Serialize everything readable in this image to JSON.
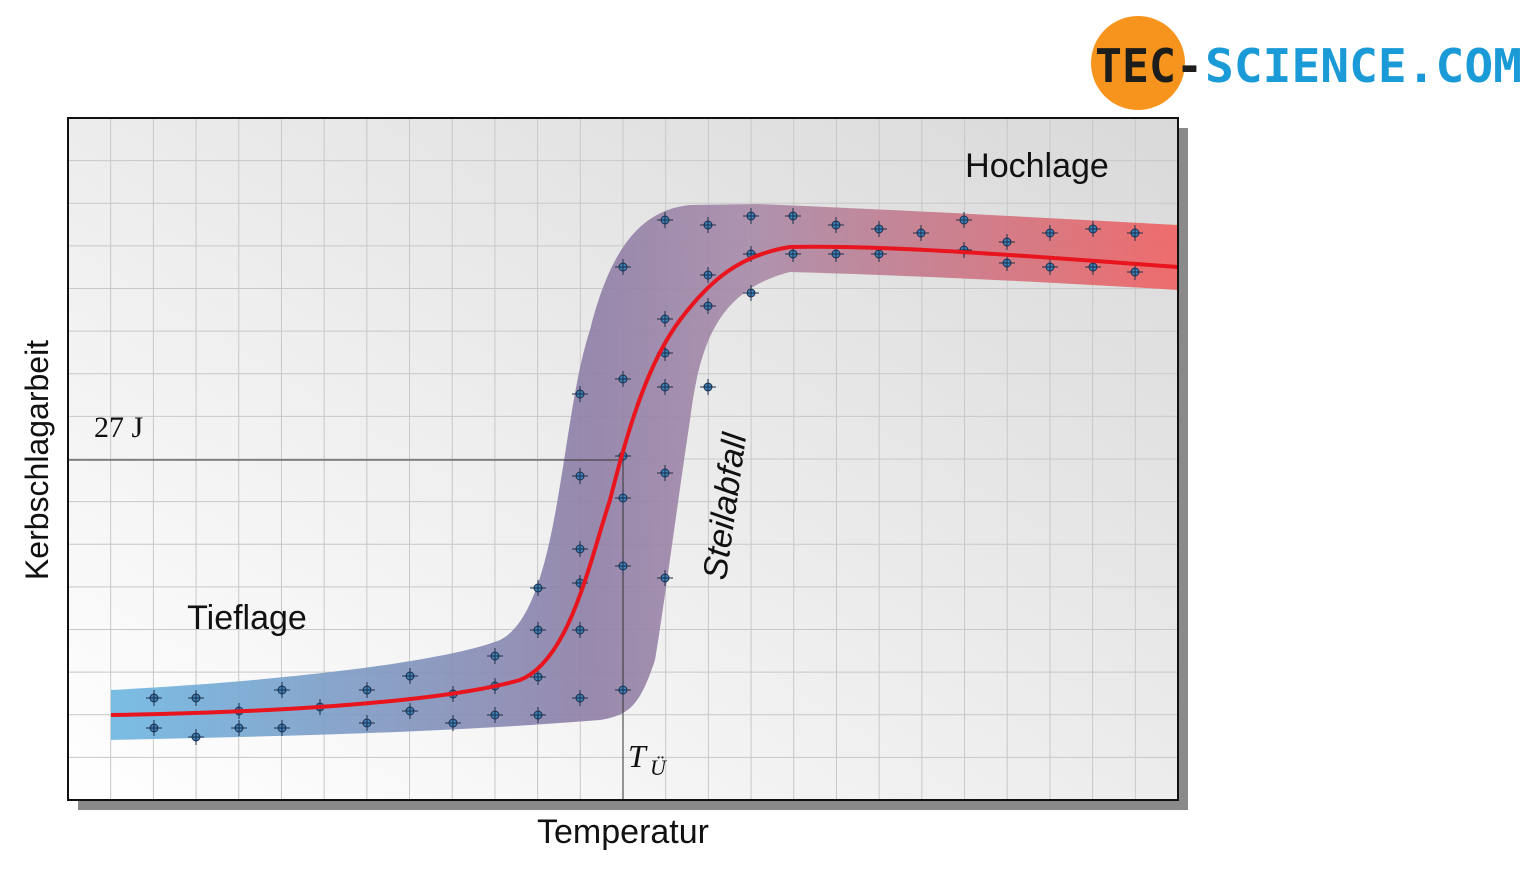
{
  "logo": {
    "part1": "TEC-",
    "part2": "SCIENCE.COM"
  },
  "diagram": {
    "y_axis_label": "Kerbschlagarbeit",
    "x_axis_label": "Temperatur",
    "upper_shelf": "Hochlage",
    "lower_shelf": "Tieflage",
    "transition": "Steilabfall",
    "reference_energy": "27 J",
    "transition_temperature": {
      "symbol": "T",
      "subscript": "Ü"
    }
  }
}
